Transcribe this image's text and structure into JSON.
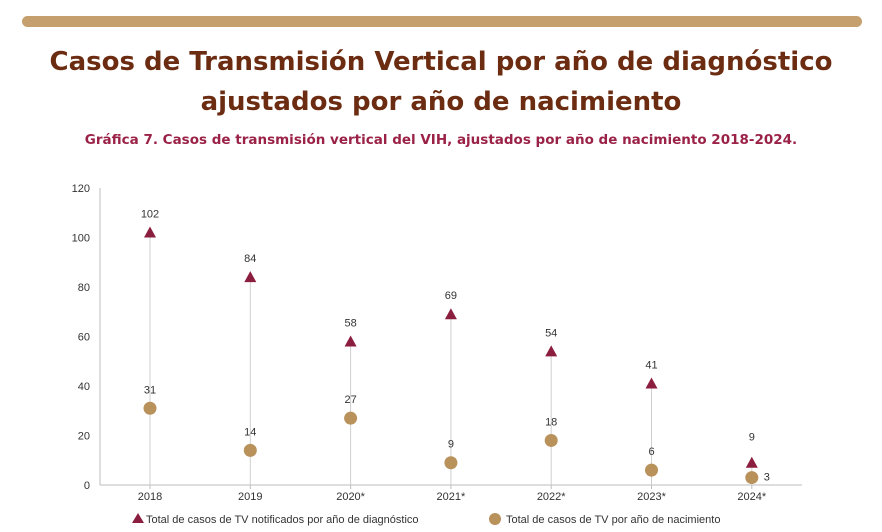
{
  "page": {
    "title_line1": "Casos de Transmisión Vertical por año de diagnóstico",
    "title_line2": "ajustados por año de nacimiento",
    "subtitle": "Gráfica 7. Casos de transmisión vertical del VIH, ajustados por año de nacimiento 2018-2024."
  },
  "colors": {
    "banner": "#c5a06e",
    "title": "#6b2c11",
    "subtitle": "#9b2247",
    "triangle": "#8b1e3f",
    "circle": "#b8915b",
    "connector": "#cfcfcf"
  },
  "chart_data": {
    "type": "scatter",
    "categories": [
      "2018",
      "2019",
      "2020*",
      "2021*",
      "2022*",
      "2023*",
      "2024*"
    ],
    "series": [
      {
        "name": "Total de casos de TV notificados por año de diagnóstico",
        "marker": "triangle",
        "values": [
          102,
          84,
          58,
          69,
          54,
          41,
          9
        ]
      },
      {
        "name": "Total de casos de TV por año de nacimiento",
        "marker": "circle",
        "values": [
          31,
          14,
          27,
          9,
          18,
          6,
          3
        ]
      }
    ],
    "ylim": [
      0,
      120
    ],
    "yticks": [
      0,
      20,
      40,
      60,
      80,
      100,
      120
    ],
    "grid": false,
    "legend": "bottom"
  }
}
